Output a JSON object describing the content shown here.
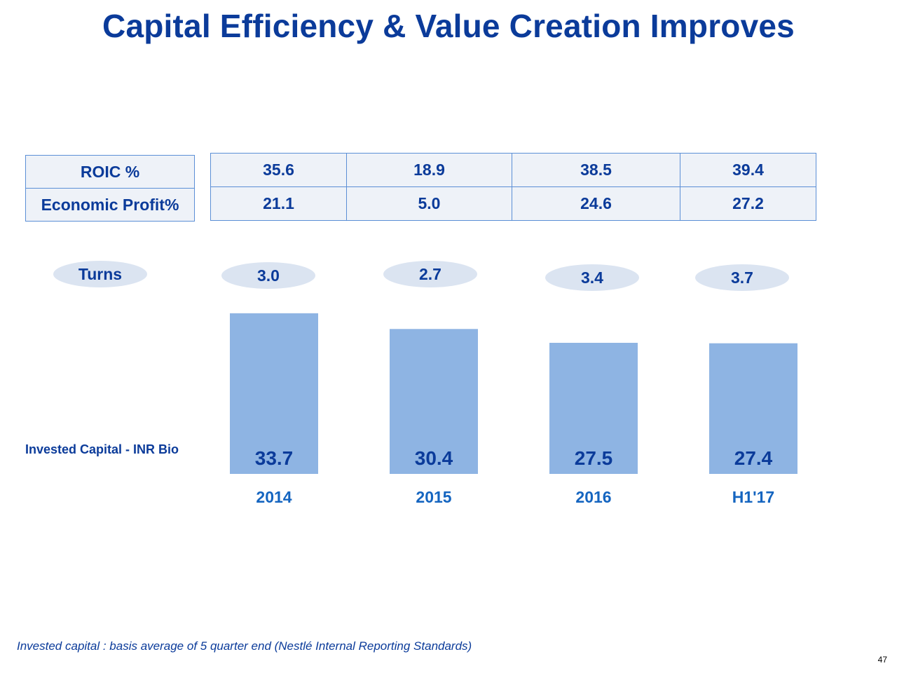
{
  "title": "Capital Efficiency & Value Creation Improves",
  "metrics": {
    "roic_label": "ROIC %",
    "roic_values": [
      "35.6",
      "18.9",
      "38.5",
      "39.4"
    ],
    "ep_label": "Economic Profit%",
    "ep_values": [
      "21.1",
      "5.0",
      "24.6",
      "27.2"
    ]
  },
  "turns": {
    "label": "Turns",
    "values": [
      "3.0",
      "2.7",
      "3.4",
      "3.7"
    ]
  },
  "invested_capital_label": "Invested Capital - INR Bio",
  "chart_data": {
    "type": "bar",
    "categories": [
      "2014",
      "2015",
      "2016",
      "H1'17"
    ],
    "values": [
      33.7,
      30.4,
      27.5,
      27.4
    ],
    "data_labels": [
      "33.7",
      "30.4",
      "27.5",
      "27.4"
    ],
    "ylabel": "Invested Capital - INR Bio",
    "bar_color": "#8eb4e3",
    "label_color": "#0b3b9a",
    "category_color": "#1565c0"
  },
  "footnote": "Invested capital : basis average of 5 quarter end  (Nestlé Internal Reporting Standards)",
  "page_number": "47"
}
